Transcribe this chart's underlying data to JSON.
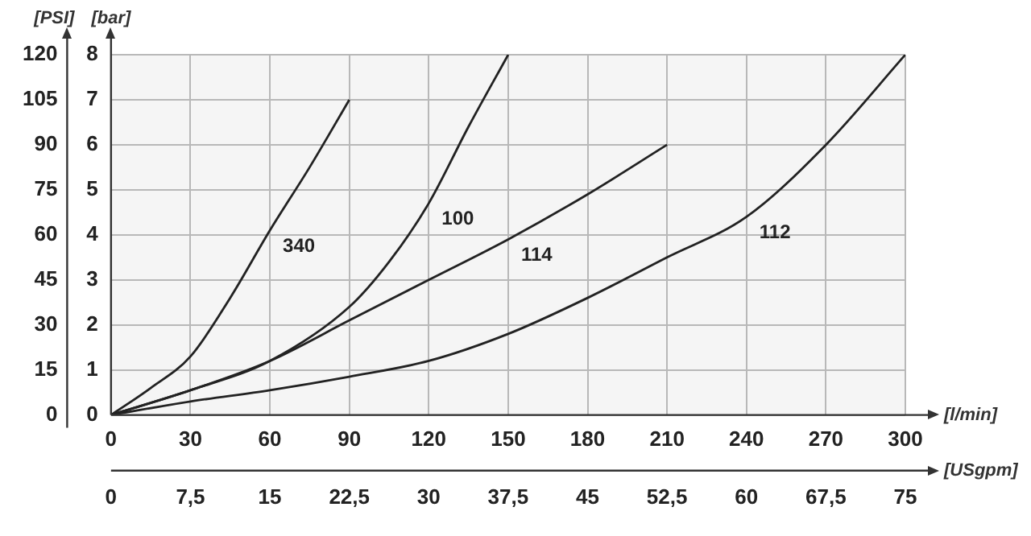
{
  "chart_data": {
    "type": "line",
    "xlabel": "[l/min]",
    "x2label": "[USgpm]",
    "ylabel": "[bar]",
    "y2label": "[PSI]",
    "xlim": [
      0,
      300
    ],
    "xticks": [
      0,
      30,
      60,
      90,
      120,
      150,
      180,
      210,
      240,
      270,
      300
    ],
    "x2lim": [
      0,
      75
    ],
    "x2ticks": [
      0,
      {
        "value": 7.5,
        "label": "7,5"
      },
      15,
      {
        "value": 22.5,
        "label": "22,5"
      },
      30,
      {
        "value": 37.5,
        "label": "37,5"
      },
      45,
      {
        "value": 52.5,
        "label": "52,5"
      },
      60,
      {
        "value": 67.5,
        "label": "67,5"
      },
      75
    ],
    "ylim": [
      0,
      8
    ],
    "yticks": [
      0,
      1,
      2,
      3,
      4,
      5,
      6,
      7,
      8
    ],
    "y2lim": [
      0,
      120
    ],
    "y2ticks": [
      0,
      15,
      30,
      45,
      60,
      75,
      90,
      105,
      120
    ],
    "grid": true,
    "marker": "none",
    "line_style": "solid",
    "series": [
      {
        "name": "340",
        "color": "#222222",
        "x": [
          0,
          15,
          30,
          45,
          60,
          75,
          90
        ],
        "values": [
          0,
          0.6,
          1.3,
          2.6,
          4.1,
          5.5,
          7.0
        ]
      },
      {
        "name": "100",
        "color": "#222222",
        "x": [
          0,
          30,
          60,
          90,
          105,
          120,
          135,
          150
        ],
        "values": [
          0,
          0.55,
          1.2,
          2.4,
          3.4,
          4.7,
          6.4,
          8.0
        ]
      },
      {
        "name": "114",
        "color": "#222222",
        "x": [
          0,
          30,
          60,
          90,
          120,
          150,
          180,
          210
        ],
        "values": [
          0,
          0.55,
          1.2,
          2.1,
          3.0,
          3.9,
          4.9,
          6.0
        ]
      },
      {
        "name": "112",
        "color": "#222222",
        "x": [
          0,
          30,
          60,
          90,
          120,
          150,
          180,
          210,
          240,
          270,
          300
        ],
        "values": [
          0,
          0.3,
          0.55,
          0.85,
          1.2,
          1.8,
          2.6,
          3.5,
          4.4,
          6.0,
          8.0
        ]
      }
    ]
  }
}
